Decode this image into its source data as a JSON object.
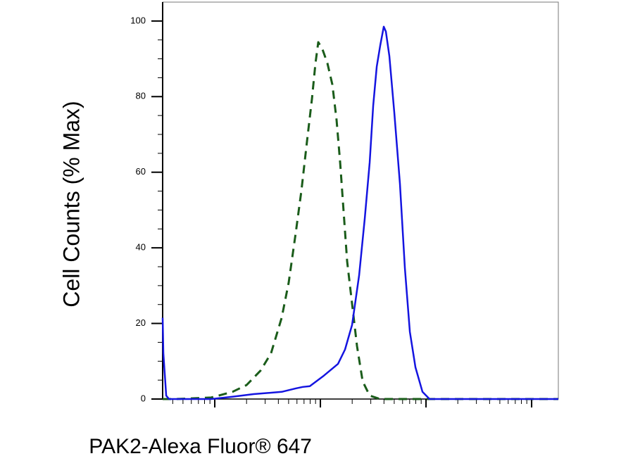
{
  "chart_data": {
    "type": "line",
    "x_label": "PAK2-Alexa Fluor® 647",
    "y_label": "Cell Counts (% Max)",
    "xscale": "log",
    "xlim": [
      32.1,
      179000
    ],
    "xticks": [
      100,
      1000,
      10000,
      100000
    ],
    "ylim": [
      0,
      105
    ],
    "yticks": [
      0,
      20,
      40,
      60,
      80,
      100
    ],
    "series": [
      {
        "color": "#1a5c1a",
        "dashed": true,
        "x": [
          32.1,
          43,
          92.6,
          147,
          200,
          271,
          341,
          430,
          501,
          584,
          661,
          747,
          832,
          898,
          955,
          1047,
          1166,
          1298,
          1423,
          1538,
          1660,
          1792,
          1995,
          2222,
          2512,
          2929,
          3684,
          9261,
          179000
        ],
        "values": [
          0,
          0,
          0.4,
          1.9,
          3.7,
          7.5,
          12.1,
          21.5,
          30.8,
          43.9,
          55.1,
          68.2,
          79.4,
          88.8,
          94.4,
          92.5,
          88.8,
          83.2,
          73.8,
          62.6,
          49.5,
          36.4,
          25.2,
          14.0,
          4.7,
          0.9,
          0,
          0,
          0
        ]
      },
      {
        "color": "#1414e0",
        "dashed": false,
        "x": [
          32.1,
          32.6,
          34.7,
          36.9,
          92.6,
          147,
          233,
          430,
          584,
          681,
          794,
          1080,
          1468,
          1711,
          1995,
          2326,
          2630,
          2929,
          3162,
          3415,
          3684,
          3981,
          4169,
          4500,
          5012,
          5662,
          6310,
          7031,
          7943,
          9261,
          10800,
          179000
        ],
        "values": [
          21.5,
          12.1,
          0.9,
          0,
          0,
          0.6,
          1.3,
          1.9,
          2.8,
          3.2,
          3.4,
          6.2,
          9.3,
          13.1,
          19.6,
          32.7,
          47.7,
          62.6,
          77.6,
          87.9,
          93.5,
          98.5,
          97.2,
          90.7,
          75.7,
          57.0,
          34.6,
          17.8,
          8.4,
          1.9,
          0,
          0
        ]
      }
    ]
  }
}
